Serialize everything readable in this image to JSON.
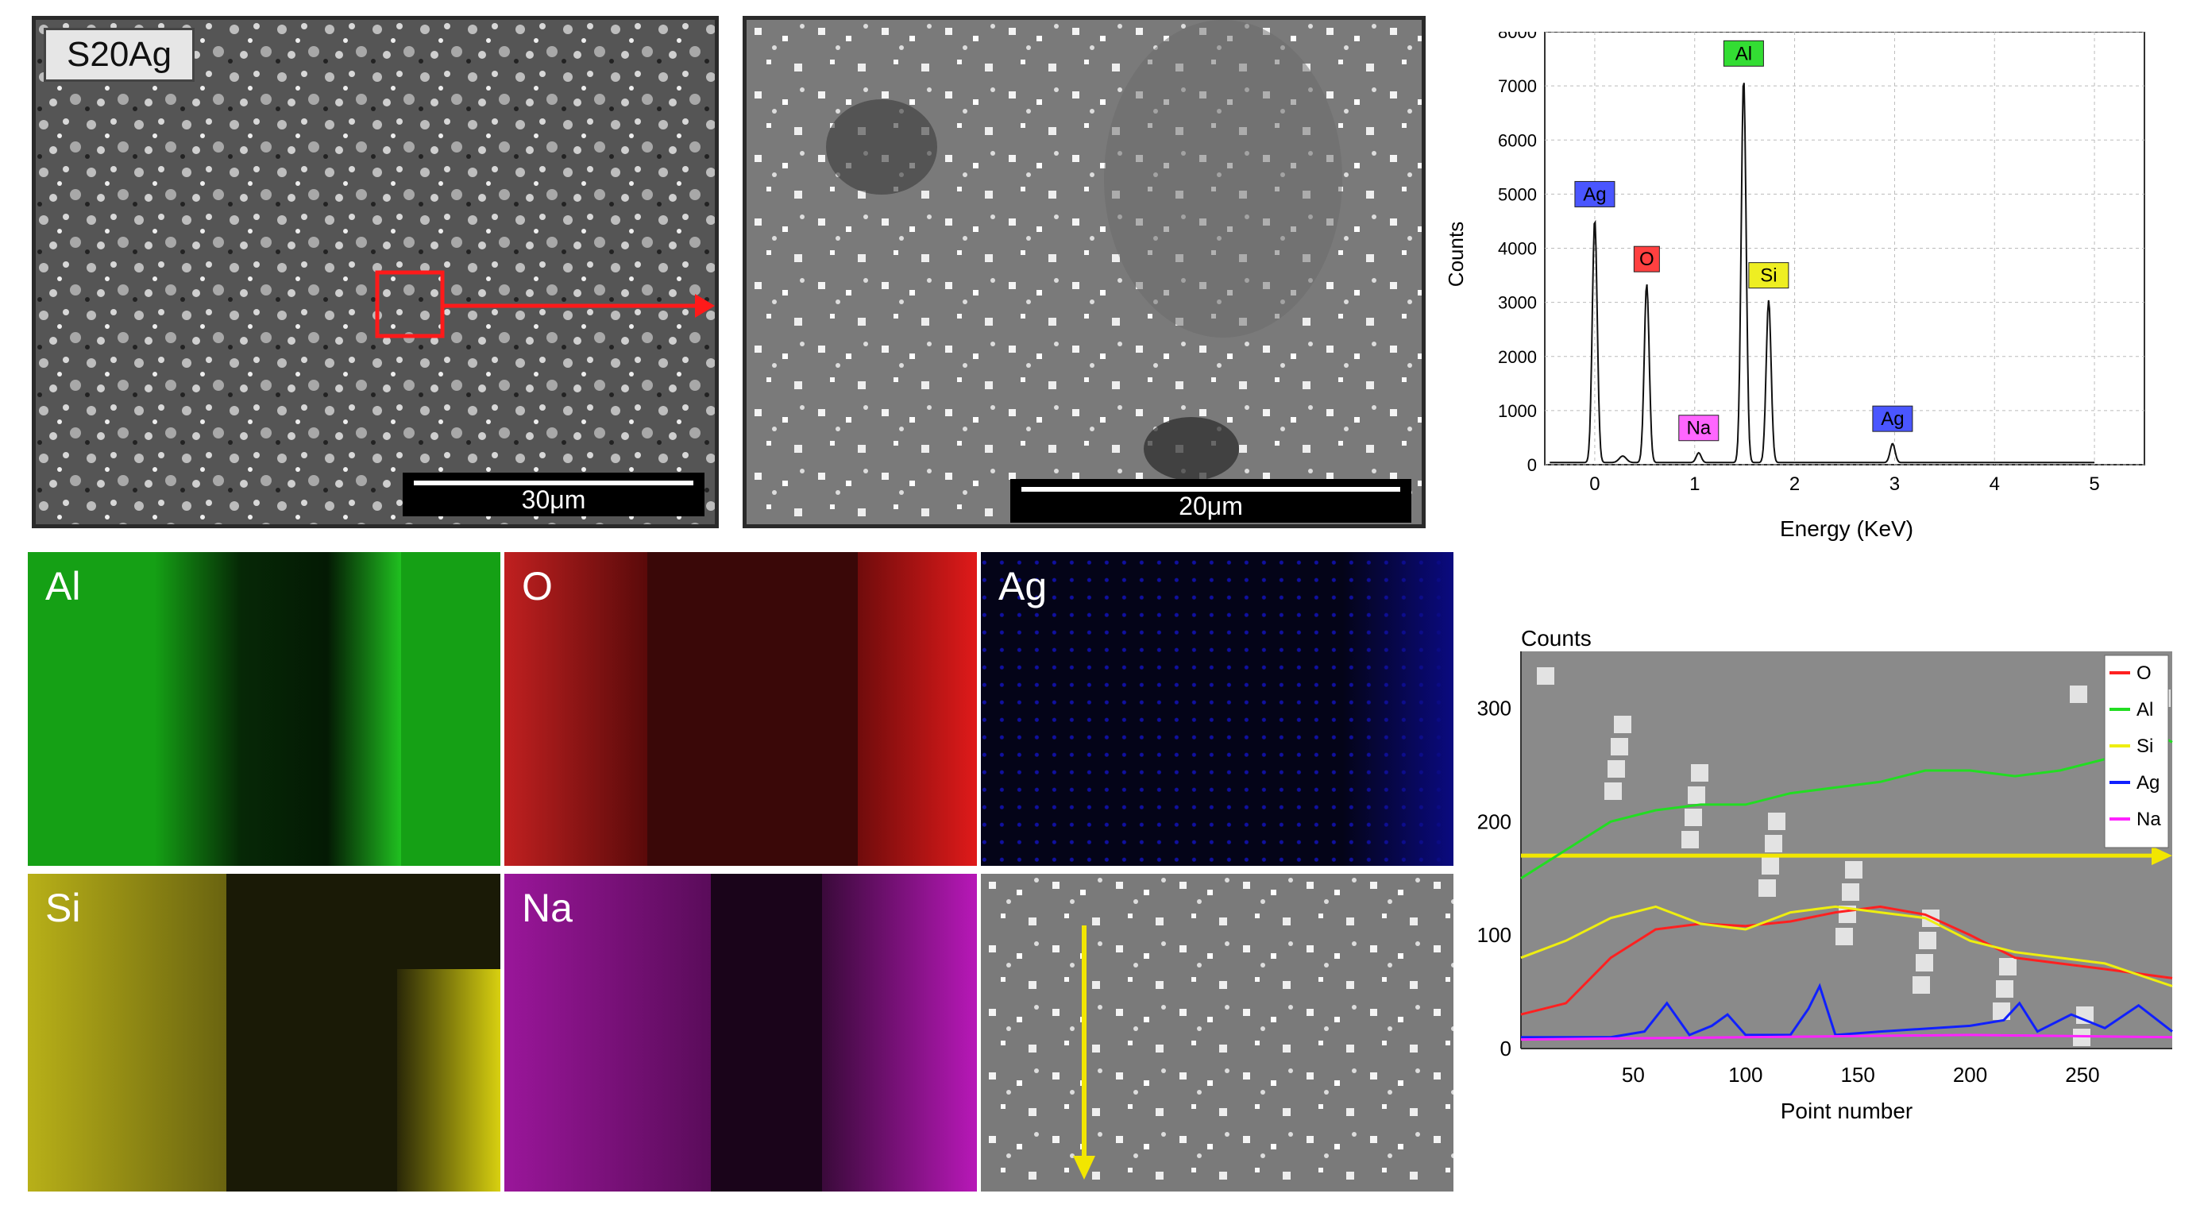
{
  "sem_overview": {
    "sample_label": "S20Ag",
    "scale_label": "30μm"
  },
  "sem_zoom": {
    "scale_label": "20μm"
  },
  "maps": [
    {
      "label": "Al",
      "color": "#22c020"
    },
    {
      "label": "O",
      "color": "#e01818"
    },
    {
      "label": "Ag",
      "color": "#1010c8"
    },
    {
      "label": "Si",
      "color": "#d8d010"
    },
    {
      "label": "Na",
      "color": "#c818c8"
    }
  ],
  "chart_data": [
    {
      "type": "line",
      "title": "",
      "xlabel": "Energy (KeV)",
      "ylabel": "Counts",
      "xlim": [
        -0.5,
        5.5
      ],
      "ylim": [
        0,
        8000
      ],
      "x_ticks": [
        "0",
        "1",
        "2",
        "3",
        "4",
        "5"
      ],
      "y_ticks": [
        "0",
        "1000",
        "2000",
        "3000",
        "4000",
        "5000",
        "6000",
        "7000",
        "8000"
      ],
      "grid": true,
      "peaks": [
        {
          "label": "Ag",
          "x": 0.0,
          "y": 4500,
          "color": "#4a56ff"
        },
        {
          "label": "O",
          "x": 0.52,
          "y": 3300,
          "color": "#ff4040"
        },
        {
          "label": "Na",
          "x": 1.04,
          "y": 180,
          "color": "#ff66ff"
        },
        {
          "label": "Al",
          "x": 1.49,
          "y": 7100,
          "color": "#33dd33"
        },
        {
          "label": "Si",
          "x": 1.74,
          "y": 3000,
          "color": "#eeee22"
        },
        {
          "label": "Ag",
          "x": 2.98,
          "y": 350,
          "color": "#4a56ff"
        }
      ]
    },
    {
      "type": "line",
      "title": "",
      "xlabel": "Point number",
      "ylabel": "Counts",
      "xlim": [
        0,
        290
      ],
      "ylim": [
        0,
        350
      ],
      "x_ticks": [
        "50",
        "100",
        "150",
        "200",
        "250"
      ],
      "y_ticks": [
        "0",
        "100",
        "200",
        "300"
      ],
      "legend_position": "top-right",
      "series": [
        {
          "name": "O",
          "color": "#ff2020",
          "x": [
            0,
            20,
            40,
            60,
            80,
            100,
            120,
            140,
            160,
            180,
            200,
            220,
            240,
            260,
            290
          ],
          "y": [
            30,
            40,
            80,
            105,
            110,
            108,
            112,
            120,
            125,
            118,
            100,
            80,
            75,
            70,
            62
          ]
        },
        {
          "name": "Al",
          "color": "#22dd22",
          "x": [
            0,
            20,
            40,
            60,
            80,
            100,
            120,
            140,
            160,
            180,
            200,
            220,
            240,
            260,
            280,
            290
          ],
          "y": [
            150,
            175,
            200,
            210,
            215,
            215,
            225,
            230,
            235,
            245,
            245,
            240,
            245,
            255,
            280,
            270
          ]
        },
        {
          "name": "Si",
          "color": "#eeee10",
          "x": [
            0,
            20,
            40,
            60,
            80,
            100,
            120,
            140,
            160,
            180,
            200,
            220,
            240,
            260,
            290
          ],
          "y": [
            80,
            95,
            115,
            125,
            110,
            105,
            120,
            125,
            120,
            115,
            95,
            85,
            80,
            75,
            55
          ]
        },
        {
          "name": "Ag",
          "color": "#1020ff",
          "x": [
            0,
            40,
            55,
            65,
            75,
            85,
            92,
            100,
            120,
            128,
            133,
            140,
            160,
            200,
            215,
            222,
            230,
            245,
            260,
            275,
            290
          ],
          "y": [
            10,
            10,
            15,
            40,
            12,
            20,
            30,
            12,
            12,
            35,
            55,
            12,
            15,
            20,
            25,
            40,
            15,
            30,
            18,
            38,
            15
          ]
        },
        {
          "name": "Na",
          "color": "#ff22ff",
          "x": [
            0,
            100,
            200,
            290
          ],
          "y": [
            8,
            10,
            12,
            10
          ]
        }
      ]
    }
  ]
}
